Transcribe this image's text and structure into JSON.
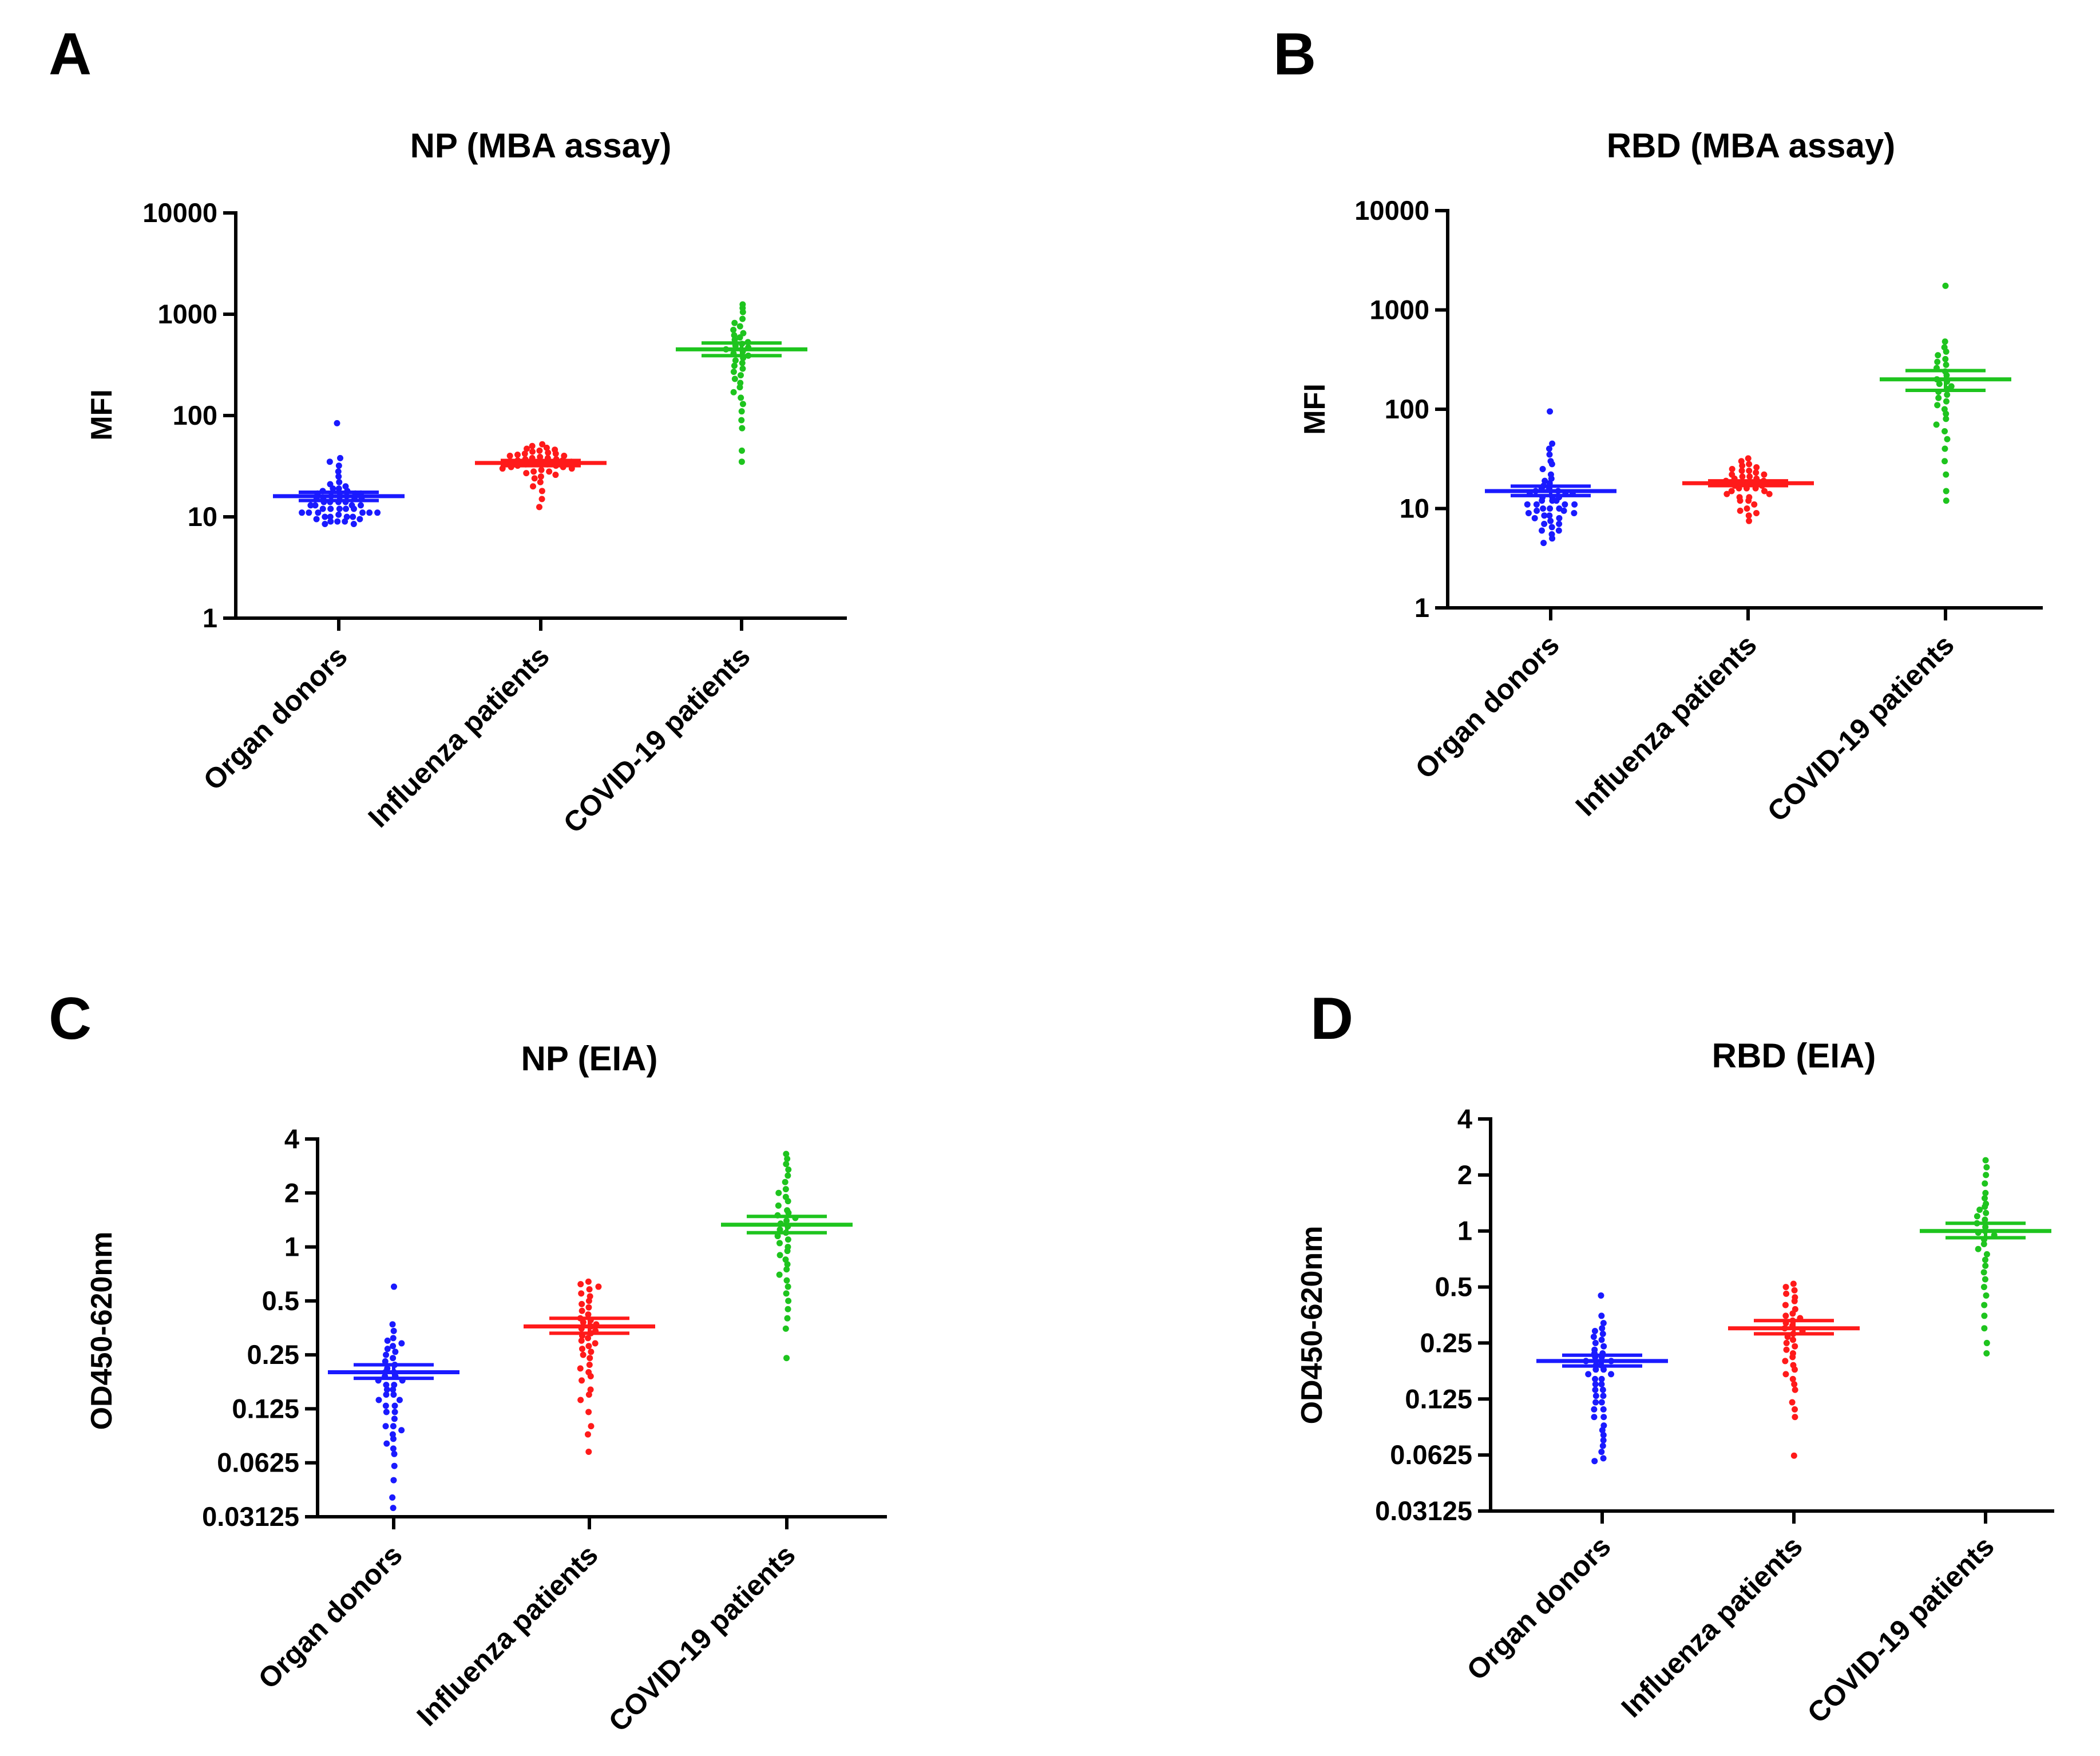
{
  "panels": [
    {
      "letter": "A",
      "title": "NP (MBA assay)",
      "ylabel": "MFI",
      "yticks": [
        1,
        10,
        100,
        1000,
        10000
      ],
      "ytick_labels": [
        "1",
        "10",
        "100",
        "1000",
        "10000"
      ]
    },
    {
      "letter": "B",
      "title": "RBD (MBA assay)",
      "ylabel": "MFI",
      "yticks": [
        1,
        10,
        100,
        1000,
        10000
      ],
      "ytick_labels": [
        "1",
        "10",
        "100",
        "1000",
        "10000"
      ]
    },
    {
      "letter": "C",
      "title": "NP (EIA)",
      "ylabel": "OD450-620nm",
      "yticks": [
        0.03125,
        0.0625,
        0.125,
        0.25,
        0.5,
        1,
        2,
        4
      ],
      "ytick_labels": [
        "0.03125",
        "0.0625",
        "0.125",
        "0.25",
        "0.5",
        "1",
        "2",
        "4"
      ]
    },
    {
      "letter": "D",
      "title": "RBD (EIA)",
      "ylabel": "OD450-620nm",
      "yticks": [
        0.03125,
        0.0625,
        0.125,
        0.25,
        0.5,
        1,
        2,
        4
      ],
      "ytick_labels": [
        "0.03125",
        "0.0625",
        "0.125",
        "0.25",
        "0.5",
        "1",
        "2",
        "4"
      ]
    }
  ],
  "colors": {
    "organ_donors": "#1a1aff",
    "influenza": "#ff1a1a",
    "covid": "#1ec41e"
  },
  "chart_data": [
    {
      "type": "scatter",
      "title": "NP (MBA assay)",
      "xlabel": "",
      "ylabel": "MFI",
      "yscale": "log10",
      "ylim": [
        1,
        10000
      ],
      "categories": [
        "Organ donors",
        "Influenza patients",
        "COVID-19 patients"
      ],
      "series": [
        {
          "name": "Organ donors",
          "color": "#1a1aff",
          "mean": 16,
          "sem_low": 14.5,
          "sem_high": 17.5,
          "values": [
            84,
            38,
            35,
            32,
            28,
            25,
            22,
            21,
            20,
            19,
            19,
            18,
            18,
            17,
            17,
            17,
            16,
            16,
            16,
            15,
            15,
            15,
            15,
            14,
            14,
            14,
            14,
            13,
            13,
            13,
            13,
            12,
            12,
            12,
            12,
            12,
            11,
            11,
            11,
            11,
            11,
            11,
            10.5,
            10,
            10,
            10,
            10,
            9.5,
            9.5,
            9,
            9,
            9,
            8.5,
            8.5
          ]
        },
        {
          "name": "Influenza patients",
          "color": "#ff1a1a",
          "mean": 34,
          "sem_low": 32,
          "sem_high": 36,
          "values": [
            52,
            50,
            48,
            47,
            46,
            45,
            44,
            43,
            42,
            42,
            41,
            40,
            40,
            39,
            38,
            38,
            37,
            37,
            36,
            36,
            35,
            35,
            34,
            34,
            33,
            33,
            32,
            32,
            31,
            31,
            30,
            30,
            29,
            28,
            28,
            27,
            26,
            25,
            24,
            22,
            20,
            18,
            15,
            12.5
          ]
        },
        {
          "name": "COVID-19 patients",
          "color": "#1ec41e",
          "mean": 450,
          "sem_low": 390,
          "sem_high": 520,
          "values": [
            1250,
            1150,
            1050,
            900,
            820,
            760,
            700,
            650,
            620,
            590,
            560,
            530,
            510,
            490,
            470,
            450,
            430,
            410,
            390,
            370,
            350,
            330,
            310,
            290,
            270,
            250,
            230,
            210,
            190,
            170,
            150,
            130,
            110,
            90,
            75,
            45,
            35
          ]
        }
      ]
    },
    {
      "type": "scatter",
      "title": "RBD (MBA assay)",
      "xlabel": "",
      "ylabel": "MFI",
      "yscale": "log10",
      "ylim": [
        1,
        10000
      ],
      "categories": [
        "Organ donors",
        "Influenza patients",
        "COVID-19 patients"
      ],
      "series": [
        {
          "name": "Organ donors",
          "color": "#1a1aff",
          "mean": 15,
          "sem_low": 13.5,
          "sem_high": 16.8,
          "values": [
            95,
            45,
            40,
            35,
            30,
            28,
            25,
            22,
            20,
            19,
            18,
            17,
            16,
            16,
            15,
            15,
            14,
            14,
            14,
            13,
            13,
            13,
            12,
            12,
            12,
            11,
            11,
            11,
            11,
            10,
            10,
            10,
            9.5,
            9.5,
            9,
            9,
            8.5,
            8.5,
            8,
            8,
            7.5,
            7,
            7,
            6.5,
            6,
            6,
            5.5,
            5,
            4.5
          ]
        },
        {
          "name": "Influenza patients",
          "color": "#ff1a1a",
          "mean": 18,
          "sem_low": 17,
          "sem_high": 19,
          "values": [
            32,
            30,
            28,
            27,
            26,
            25,
            24,
            24,
            23,
            22,
            22,
            21,
            21,
            20,
            20,
            19,
            19,
            18,
            18,
            18,
            17,
            17,
            16,
            16,
            16,
            15,
            15,
            14,
            14,
            13,
            13,
            12,
            12,
            11,
            10,
            9.5,
            9,
            8.5,
            7.5
          ]
        },
        {
          "name": "COVID-19 patients",
          "color": "#1ec41e",
          "mean": 200,
          "sem_low": 155,
          "sem_high": 245,
          "values": [
            1750,
            480,
            420,
            380,
            350,
            320,
            300,
            280,
            260,
            240,
            220,
            200,
            190,
            180,
            170,
            160,
            150,
            140,
            130,
            120,
            110,
            100,
            90,
            80,
            70,
            60,
            50,
            40,
            30,
            22,
            15,
            12
          ]
        }
      ]
    },
    {
      "type": "scatter",
      "title": "NP (EIA)",
      "xlabel": "",
      "ylabel": "OD450-620nm",
      "yscale": "log2",
      "ylim": [
        0.03125,
        4
      ],
      "categories": [
        "Organ donors",
        "Influenza patients",
        "COVID-19 patients"
      ],
      "series": [
        {
          "name": "Organ donors",
          "color": "#1a1aff",
          "mean": 0.2,
          "sem_low": 0.185,
          "sem_high": 0.22,
          "values": [
            0.6,
            0.37,
            0.34,
            0.31,
            0.3,
            0.29,
            0.28,
            0.27,
            0.26,
            0.25,
            0.24,
            0.23,
            0.22,
            0.21,
            0.2,
            0.2,
            0.19,
            0.19,
            0.18,
            0.18,
            0.17,
            0.17,
            0.16,
            0.16,
            0.15,
            0.15,
            0.14,
            0.14,
            0.13,
            0.13,
            0.12,
            0.12,
            0.11,
            0.1,
            0.1,
            0.095,
            0.09,
            0.085,
            0.08,
            0.075,
            0.07,
            0.06,
            0.05,
            0.04,
            0.035
          ]
        },
        {
          "name": "Influenza patients",
          "color": "#ff1a1a",
          "mean": 0.36,
          "sem_low": 0.33,
          "sem_high": 0.4,
          "values": [
            0.64,
            0.62,
            0.6,
            0.58,
            0.55,
            0.53,
            0.5,
            0.48,
            0.46,
            0.44,
            0.42,
            0.4,
            0.39,
            0.38,
            0.37,
            0.36,
            0.35,
            0.34,
            0.33,
            0.32,
            0.31,
            0.3,
            0.29,
            0.28,
            0.27,
            0.26,
            0.25,
            0.24,
            0.22,
            0.21,
            0.2,
            0.19,
            0.18,
            0.16,
            0.15,
            0.14,
            0.12,
            0.1,
            0.09,
            0.072
          ]
        },
        {
          "name": "COVID-19 patients",
          "color": "#1ec41e",
          "mean": 1.33,
          "sem_low": 1.2,
          "sem_high": 1.48,
          "values": [
            3.3,
            3.1,
            2.9,
            2.7,
            2.5,
            2.3,
            2.1,
            2.0,
            1.9,
            1.8,
            1.7,
            1.6,
            1.55,
            1.5,
            1.45,
            1.4,
            1.35,
            1.3,
            1.25,
            1.2,
            1.15,
            1.1,
            1.05,
            1.0,
            0.95,
            0.9,
            0.85,
            0.8,
            0.75,
            0.7,
            0.65,
            0.6,
            0.55,
            0.5,
            0.45,
            0.4,
            0.35,
            0.24
          ]
        }
      ]
    },
    {
      "type": "scatter",
      "title": "RBD (EIA)",
      "xlabel": "",
      "ylabel": "OD450-620nm",
      "yscale": "log2",
      "ylim": [
        0.03125,
        4
      ],
      "categories": [
        "Organ donors",
        "Influenza patients",
        "COVID-19 patients"
      ],
      "series": [
        {
          "name": "Organ donors",
          "color": "#1a1aff",
          "mean": 0.2,
          "sem_low": 0.188,
          "sem_high": 0.215,
          "values": [
            0.45,
            0.35,
            0.32,
            0.3,
            0.29,
            0.28,
            0.27,
            0.26,
            0.25,
            0.24,
            0.23,
            0.22,
            0.22,
            0.21,
            0.21,
            0.2,
            0.2,
            0.19,
            0.19,
            0.18,
            0.18,
            0.17,
            0.17,
            0.16,
            0.16,
            0.15,
            0.15,
            0.14,
            0.14,
            0.13,
            0.13,
            0.12,
            0.12,
            0.11,
            0.11,
            0.1,
            0.1,
            0.09,
            0.085,
            0.08,
            0.075,
            0.07,
            0.065,
            0.06,
            0.058
          ]
        },
        {
          "name": "Influenza patients",
          "color": "#ff1a1a",
          "mean": 0.3,
          "sem_low": 0.28,
          "sem_high": 0.33,
          "values": [
            0.52,
            0.5,
            0.48,
            0.46,
            0.44,
            0.42,
            0.4,
            0.38,
            0.36,
            0.35,
            0.34,
            0.33,
            0.32,
            0.31,
            0.3,
            0.29,
            0.28,
            0.27,
            0.26,
            0.25,
            0.24,
            0.23,
            0.22,
            0.21,
            0.2,
            0.19,
            0.18,
            0.17,
            0.16,
            0.15,
            0.14,
            0.12,
            0.11,
            0.1,
            0.062
          ]
        },
        {
          "name": "COVID-19 patients",
          "color": "#1ec41e",
          "mean": 1.0,
          "sem_low": 0.92,
          "sem_high": 1.1,
          "values": [
            2.4,
            2.2,
            2.0,
            1.8,
            1.6,
            1.5,
            1.4,
            1.35,
            1.3,
            1.25,
            1.2,
            1.15,
            1.1,
            1.05,
            1.0,
            0.98,
            0.95,
            0.9,
            0.85,
            0.8,
            0.75,
            0.7,
            0.65,
            0.6,
            0.55,
            0.5,
            0.45,
            0.4,
            0.35,
            0.3,
            0.25,
            0.22
          ]
        }
      ]
    }
  ]
}
